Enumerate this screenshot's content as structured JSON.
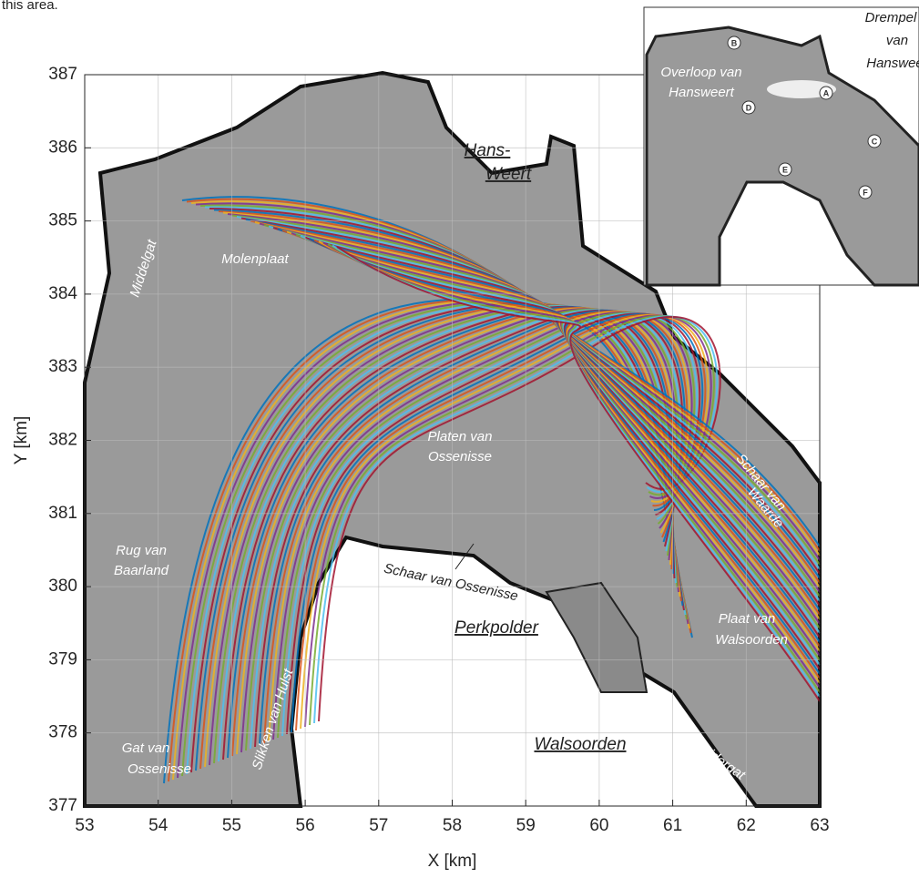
{
  "caption_fragment": "this area.",
  "figure": {
    "xlabel": "X [km]",
    "ylabel": "Y [km]",
    "xlim": [
      53,
      63
    ],
    "ylim": [
      377,
      387
    ],
    "xticks": [
      53,
      54,
      55,
      56,
      57,
      58,
      59,
      60,
      61,
      62,
      63
    ],
    "yticks": [
      377,
      378,
      379,
      380,
      381,
      382,
      383,
      384,
      385,
      386,
      387
    ],
    "grid": true,
    "place_labels": [
      "Hans-",
      "Weert",
      "Perkpolder",
      "Walsoorden"
    ],
    "area_labels": [
      "Molenplaat",
      "Middelgat",
      "Platen van",
      "Ossenisse",
      "Schaar van",
      "Waarde",
      "Rug van",
      "Baarland",
      "Plaat van",
      "Walsoorden",
      "Gat van",
      "Ossenisse",
      "Slikken van Hulst",
      "Zuidergat"
    ],
    "channel_label": "Schaar van Ossenisse",
    "inset": {
      "labels": [
        "Overloop van",
        "Hansweert",
        "Drempel",
        "van",
        "Hansweer"
      ],
      "points": [
        "A",
        "B",
        "C",
        "D",
        "E",
        "F"
      ]
    }
  }
}
